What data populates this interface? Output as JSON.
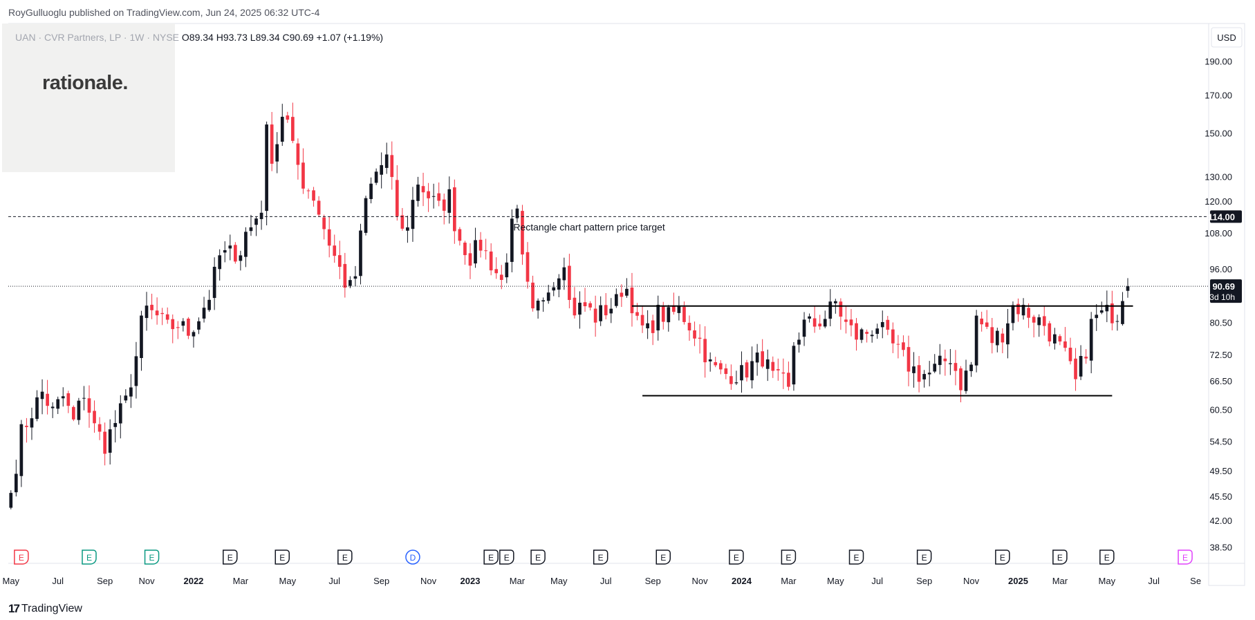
{
  "header": {
    "publisher": "RoyGulluoglu published on TradingView.com, Jun 24, 2025 06:32 UTC-4"
  },
  "logo": {
    "text": "rationale."
  },
  "legend": {
    "symbol": "UAN · CVR Partners, LP · 1W · NYSE",
    "open": "O89.34",
    "high": "H93.73",
    "low": "L89.34",
    "close": "C90.69",
    "change": "+1.07 (+1.19%)"
  },
  "currency": "USD",
  "footer": {
    "brand": "TradingView",
    "logo_mark": "17"
  },
  "colors": {
    "up": "#131722",
    "down": "#f23645",
    "grid": "#e0e3eb",
    "text": "#131722"
  },
  "chart_data": {
    "type": "candlestick",
    "scale": "log",
    "ylim": [
      36.5,
      215
    ],
    "y_ticks": [
      38.5,
      42.0,
      45.5,
      49.5,
      54.5,
      60.5,
      66.5,
      72.5,
      80.5,
      96.0,
      108.0,
      120.0,
      130.0,
      150.0,
      170.0,
      190.0
    ],
    "y_tick_labels": [
      "38.50",
      "42.00",
      "45.50",
      "49.50",
      "54.50",
      "60.50",
      "66.50",
      "72.50",
      "80.50",
      "96.00",
      "108.00",
      "120.00",
      "130.00",
      "150.00",
      "170.00",
      "190.00"
    ],
    "x_labels": [
      {
        "label": "May",
        "week": 0,
        "bold": false
      },
      {
        "label": "Jul",
        "week": 9,
        "bold": false
      },
      {
        "label": "Sep",
        "week": 18,
        "bold": false
      },
      {
        "label": "Nov",
        "week": 26,
        "bold": false
      },
      {
        "label": "2022",
        "week": 35,
        "bold": true
      },
      {
        "label": "Mar",
        "week": 44,
        "bold": false
      },
      {
        "label": "May",
        "week": 53,
        "bold": false
      },
      {
        "label": "Jul",
        "week": 62,
        "bold": false
      },
      {
        "label": "Sep",
        "week": 71,
        "bold": false
      },
      {
        "label": "Nov",
        "week": 80,
        "bold": false
      },
      {
        "label": "2023",
        "week": 88,
        "bold": true
      },
      {
        "label": "Mar",
        "week": 97,
        "bold": false
      },
      {
        "label": "May",
        "week": 105,
        "bold": false
      },
      {
        "label": "Jul",
        "week": 114,
        "bold": false
      },
      {
        "label": "Sep",
        "week": 123,
        "bold": false
      },
      {
        "label": "Nov",
        "week": 132,
        "bold": false
      },
      {
        "label": "2024",
        "week": 140,
        "bold": true
      },
      {
        "label": "Mar",
        "week": 149,
        "bold": false
      },
      {
        "label": "May",
        "week": 158,
        "bold": false
      },
      {
        "label": "Jul",
        "week": 166,
        "bold": false
      },
      {
        "label": "Sep",
        "week": 175,
        "bold": false
      },
      {
        "label": "Nov",
        "week": 184,
        "bold": false
      },
      {
        "label": "2025",
        "week": 193,
        "bold": true
      },
      {
        "label": "Mar",
        "week": 201,
        "bold": false
      },
      {
        "label": "May",
        "week": 210,
        "bold": false
      },
      {
        "label": "Jul",
        "week": 219,
        "bold": false
      },
      {
        "label": "Se",
        "week": 227,
        "bold": false
      }
    ],
    "anchors": [
      [
        0,
        46
      ],
      [
        2,
        56
      ],
      [
        4,
        60
      ],
      [
        6,
        64
      ],
      [
        8,
        60
      ],
      [
        10,
        63
      ],
      [
        12,
        58
      ],
      [
        14,
        64
      ],
      [
        16,
        57
      ],
      [
        18,
        54
      ],
      [
        20,
        58
      ],
      [
        22,
        62
      ],
      [
        24,
        72
      ],
      [
        25,
        80
      ],
      [
        26,
        84
      ],
      [
        28,
        82
      ],
      [
        30,
        79
      ],
      [
        32,
        80
      ],
      [
        34,
        78
      ],
      [
        36,
        82
      ],
      [
        38,
        88
      ],
      [
        40,
        100
      ],
      [
        42,
        101
      ],
      [
        44,
        102
      ],
      [
        45,
        108
      ],
      [
        46,
        110
      ],
      [
        48,
        118
      ],
      [
        49,
        150
      ],
      [
        50,
        140
      ],
      [
        51,
        146
      ],
      [
        52,
        160
      ],
      [
        53,
        155
      ],
      [
        54,
        142
      ],
      [
        55,
        135
      ],
      [
        56,
        128
      ],
      [
        58,
        122
      ],
      [
        60,
        110
      ],
      [
        62,
        100
      ],
      [
        64,
        92
      ],
      [
        65,
        90
      ],
      [
        66,
        94
      ],
      [
        68,
        120
      ],
      [
        70,
        132
      ],
      [
        72,
        138
      ],
      [
        74,
        115
      ],
      [
        75,
        108
      ],
      [
        76,
        112
      ],
      [
        78,
        128
      ],
      [
        80,
        122
      ],
      [
        82,
        117
      ],
      [
        84,
        122
      ],
      [
        85,
        112
      ],
      [
        86,
        106
      ],
      [
        88,
        100
      ],
      [
        90,
        104
      ],
      [
        92,
        98
      ],
      [
        94,
        92
      ],
      [
        96,
        110
      ],
      [
        97,
        114
      ],
      [
        98,
        98
      ],
      [
        100,
        82
      ],
      [
        102,
        88
      ],
      [
        103,
        92
      ],
      [
        104,
        92
      ],
      [
        106,
        100
      ],
      [
        107,
        86
      ],
      [
        108,
        84
      ],
      [
        110,
        85
      ],
      [
        112,
        82
      ],
      [
        114,
        84
      ],
      [
        116,
        86
      ],
      [
        117,
        90
      ],
      [
        118,
        90
      ],
      [
        119,
        86
      ],
      [
        120,
        80
      ],
      [
        122,
        78
      ],
      [
        124,
        83
      ],
      [
        126,
        82
      ],
      [
        128,
        84
      ],
      [
        130,
        80
      ],
      [
        132,
        76
      ],
      [
        134,
        70
      ],
      [
        136,
        68
      ],
      [
        138,
        68
      ],
      [
        140,
        68
      ],
      [
        142,
        70
      ],
      [
        144,
        72
      ],
      [
        146,
        67
      ],
      [
        148,
        66
      ],
      [
        149,
        64
      ],
      [
        150,
        75
      ],
      [
        152,
        80
      ],
      [
        154,
        80
      ],
      [
        156,
        82
      ],
      [
        158,
        86
      ],
      [
        160,
        80
      ],
      [
        162,
        77
      ],
      [
        164,
        78
      ],
      [
        166,
        80
      ],
      [
        168,
        76
      ],
      [
        170,
        73
      ],
      [
        172,
        70
      ],
      [
        174,
        68
      ],
      [
        176,
        68
      ],
      [
        178,
        70
      ],
      [
        180,
        72
      ],
      [
        182,
        66
      ],
      [
        184,
        70
      ],
      [
        185,
        82
      ],
      [
        186,
        80
      ],
      [
        188,
        76
      ],
      [
        190,
        78
      ],
      [
        192,
        85
      ],
      [
        194,
        84
      ],
      [
        196,
        82
      ],
      [
        198,
        80
      ],
      [
        200,
        76
      ],
      [
        202,
        72
      ],
      [
        204,
        66
      ],
      [
        206,
        74
      ],
      [
        207,
        80
      ],
      [
        208,
        82
      ],
      [
        210,
        83
      ],
      [
        212,
        83
      ],
      [
        213,
        89
      ],
      [
        214,
        90.69
      ]
    ],
    "current_price": 90.69,
    "current_price_label": "90.69",
    "countdown": "3d 10h",
    "target_price": 114.0,
    "target_price_label": "114.00",
    "target_annotation": "Rectangle chart pattern price target",
    "resistance": {
      "price": 85.0,
      "from_week": 119,
      "to_week": 215
    },
    "support": {
      "price": 63.3,
      "from_week": 121,
      "to_week": 211
    },
    "events": [
      {
        "week": 2,
        "type": "E",
        "color": "#f23645"
      },
      {
        "week": 15,
        "type": "E",
        "color": "#089981"
      },
      {
        "week": 27,
        "type": "E",
        "color": "#089981"
      },
      {
        "week": 42,
        "type": "E",
        "color": "#131722"
      },
      {
        "week": 52,
        "type": "E",
        "color": "#131722"
      },
      {
        "week": 64,
        "type": "E",
        "color": "#131722"
      },
      {
        "week": 77,
        "type": "D",
        "color": "#2962ff"
      },
      {
        "week": 92,
        "type": "E",
        "color": "#131722"
      },
      {
        "week": 95,
        "type": "E",
        "color": "#131722"
      },
      {
        "week": 101,
        "type": "E",
        "color": "#131722"
      },
      {
        "week": 113,
        "type": "E",
        "color": "#131722"
      },
      {
        "week": 125,
        "type": "E",
        "color": "#131722"
      },
      {
        "week": 139,
        "type": "E",
        "color": "#131722"
      },
      {
        "week": 149,
        "type": "E",
        "color": "#131722"
      },
      {
        "week": 162,
        "type": "E",
        "color": "#131722"
      },
      {
        "week": 175,
        "type": "E",
        "color": "#131722"
      },
      {
        "week": 190,
        "type": "E",
        "color": "#131722"
      },
      {
        "week": 201,
        "type": "E",
        "color": "#131722"
      },
      {
        "week": 210,
        "type": "E",
        "color": "#131722"
      },
      {
        "week": 225,
        "type": "E",
        "color": "#e040fb"
      }
    ]
  }
}
